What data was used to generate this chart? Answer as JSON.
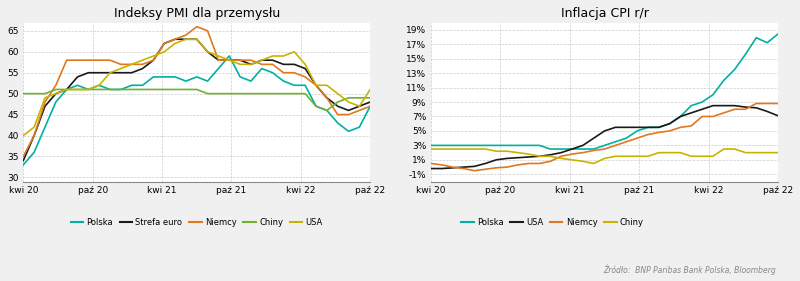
{
  "title1": "Indeksy PMI dla przemysłu",
  "title2": "Inflacja CPI r/r",
  "source": "Źródło:  BNP Paribas Bank Polska, Bloomberg",
  "pmi_xticks": [
    "kwi 20",
    "paź 20",
    "kwi 21",
    "paź 21",
    "kwi 22",
    "paź 22"
  ],
  "pmi_yticks": [
    30,
    35,
    40,
    45,
    50,
    55,
    60,
    65
  ],
  "pmi_ylim": [
    29,
    67
  ],
  "cpi_xticks": [
    "kwi 20",
    "paź 20",
    "kwi 21",
    "paź 21",
    "kwi 22",
    "paź 22"
  ],
  "cpi_yticks": [
    -1,
    1,
    3,
    5,
    7,
    9,
    11,
    13,
    15,
    17,
    19
  ],
  "cpi_ytick_labels": [
    "-1%",
    "1%",
    "3%",
    "5%",
    "7%",
    "9%",
    "11%",
    "13%",
    "15%",
    "17%",
    "19%"
  ],
  "cpi_ylim": [
    -2,
    20
  ],
  "color_polska": "#00b0a0",
  "color_strefa_euro": "#1a1a1a",
  "color_niemcy": "#e07820",
  "color_chiny": "#70b030",
  "color_usa": "#c8b400",
  "color_usa_cpi": "#c8b400",
  "color_niemcy_cpi": "#e07820",
  "color_chiny_cpi": "#c8b400",
  "bg_color": "#f0f0f0",
  "plot_bg": "#ffffff",
  "pmi_legend": [
    "Polska",
    "Strefa euro",
    "Niemcy",
    "Chiny",
    "USA"
  ],
  "cpi_legend": [
    "Polska",
    "USA",
    "Niemcy",
    "Chiny"
  ],
  "n_points": 33,
  "pmi_polska": [
    33,
    36,
    42,
    48,
    51,
    52,
    51,
    52,
    51,
    51,
    52,
    52,
    54,
    54,
    54,
    53,
    54,
    53,
    56,
    59,
    54,
    53,
    56,
    55,
    53,
    52,
    52,
    47,
    46,
    43,
    41,
    42,
    47
  ],
  "pmi_strefa_euro": [
    34,
    40,
    47,
    50,
    51,
    54,
    55,
    55,
    55,
    55,
    55,
    56,
    58,
    62,
    63,
    63,
    63,
    60,
    58,
    58,
    58,
    57,
    58,
    58,
    57,
    57,
    56,
    52,
    49,
    47,
    46,
    47,
    48
  ],
  "pmi_niemcy": [
    35,
    40,
    48,
    52,
    58,
    58,
    58,
    58,
    58,
    57,
    57,
    57,
    58,
    62,
    63,
    64,
    66,
    65,
    58,
    58,
    58,
    58,
    57,
    57,
    55,
    55,
    54,
    52,
    49,
    45,
    45,
    46,
    47
  ],
  "pmi_chiny": [
    50,
    50,
    50,
    51,
    51,
    51,
    51,
    51,
    51,
    51,
    51,
    51,
    51,
    51,
    51,
    51,
    51,
    50,
    50,
    50,
    50,
    50,
    50,
    50,
    50,
    50,
    50,
    47,
    46,
    48,
    49,
    49,
    49
  ],
  "pmi_usa": [
    40,
    42,
    49,
    50,
    51,
    51,
    51,
    52,
    55,
    56,
    57,
    58,
    59,
    60,
    62,
    63,
    63,
    60,
    59,
    58,
    57,
    57,
    58,
    59,
    59,
    60,
    57,
    52,
    52,
    50,
    48,
    47,
    51
  ],
  "cpi_polska": [
    3.0,
    3.0,
    3.0,
    3.0,
    3.0,
    3.0,
    3.0,
    3.0,
    3.0,
    3.0,
    3.0,
    2.5,
    2.5,
    2.5,
    2.5,
    2.5,
    3.0,
    3.5,
    4.0,
    5.0,
    5.5,
    5.5,
    6.0,
    7.0,
    8.5,
    9.0,
    10.0,
    12.0,
    13.5,
    15.6,
    17.9,
    17.2,
    18.4
  ],
  "cpi_usa": [
    -0.2,
    -0.2,
    -0.1,
    0.0,
    0.1,
    0.5,
    1.0,
    1.2,
    1.3,
    1.4,
    1.5,
    1.7,
    2.0,
    2.5,
    3.0,
    4.0,
    5.0,
    5.5,
    5.5,
    5.5,
    5.5,
    5.5,
    6.0,
    7.0,
    7.5,
    8.0,
    8.5,
    8.5,
    8.5,
    8.3,
    8.2,
    7.7,
    7.1
  ],
  "cpi_niemcy": [
    0.5,
    0.3,
    0.0,
    -0.2,
    -0.5,
    -0.3,
    -0.1,
    0.0,
    0.3,
    0.5,
    0.5,
    0.8,
    1.5,
    1.8,
    2.0,
    2.3,
    2.5,
    3.0,
    3.5,
    4.0,
    4.5,
    4.8,
    5.0,
    5.5,
    5.7,
    7.0,
    7.0,
    7.5,
    8.0,
    8.0,
    8.8,
    8.8,
    8.8
  ],
  "cpi_chiny": [
    2.5,
    2.5,
    2.5,
    2.5,
    2.5,
    2.5,
    2.2,
    2.2,
    2.0,
    1.8,
    1.5,
    1.5,
    1.2,
    1.0,
    0.8,
    0.5,
    1.2,
    1.5,
    1.5,
    1.5,
    1.5,
    2.0,
    2.0,
    2.0,
    1.5,
    1.5,
    1.5,
    2.5,
    2.5,
    2.0,
    2.0,
    2.0,
    2.0
  ]
}
